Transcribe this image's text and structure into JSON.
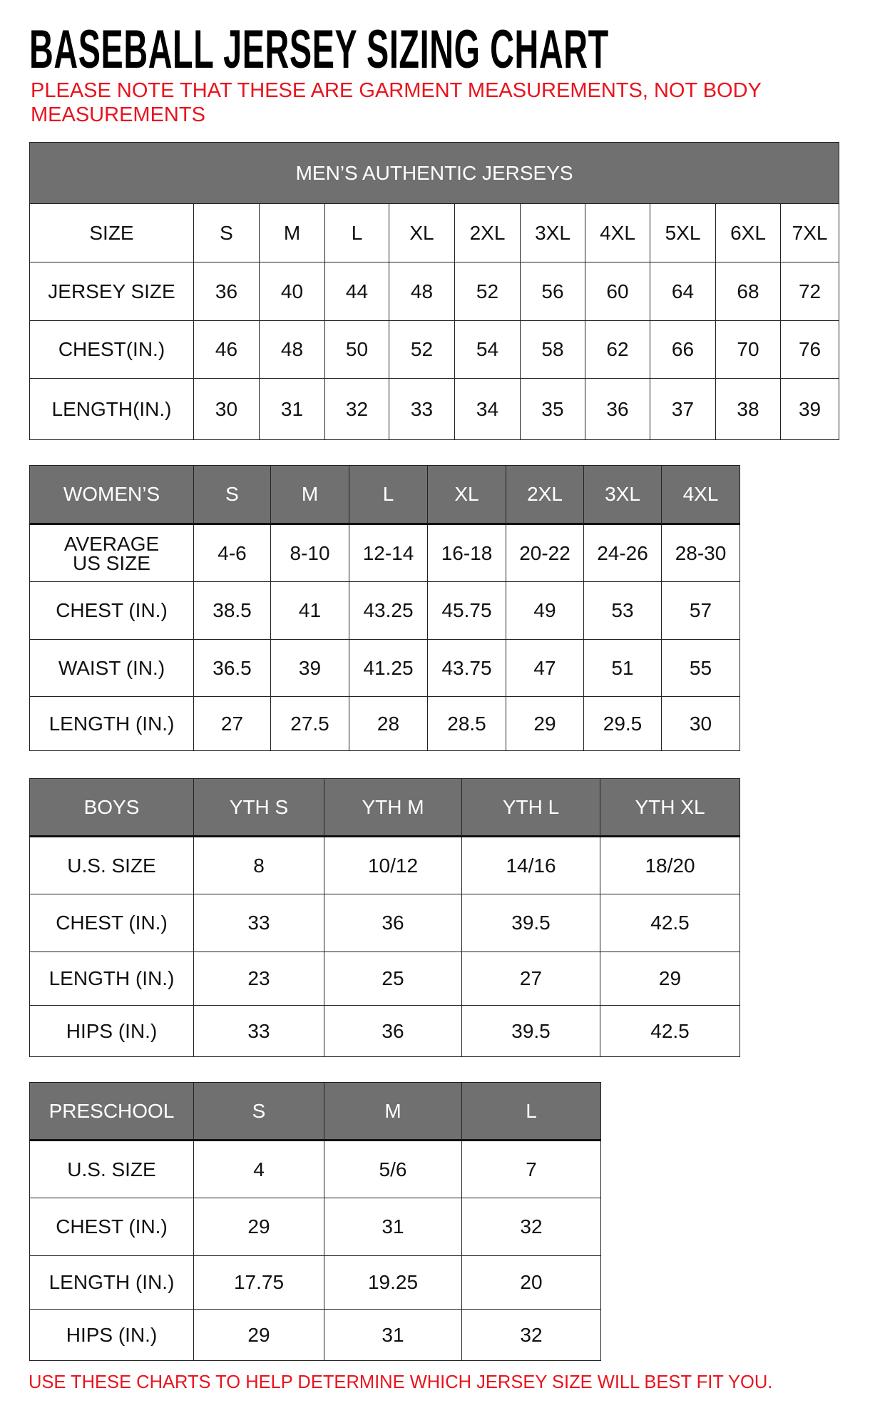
{
  "title": "BASEBALL JERSEY SIZING CHART",
  "note": "PLEASE NOTE THAT THESE ARE GARMENT MEASUREMENTS, NOT BODY MEASUREMENTS",
  "footer": "USE THESE CHARTS TO HELP DETERMINE WHICH JERSEY SIZE WILL BEST FIT YOU.",
  "colors": {
    "header_bg": "#707070",
    "note_red": "#e8141e"
  },
  "tables": [
    {
      "id": "mens",
      "banner": "MEN’S AUTHENTIC JERSEYS",
      "header_dark": false,
      "rows": [
        [
          "SIZE",
          "S",
          "M",
          "L",
          "XL",
          "2XL",
          "3XL",
          "4XL",
          "5XL",
          "6XL",
          "7XL"
        ],
        [
          "JERSEY SIZE",
          "36",
          "40",
          "44",
          "48",
          "52",
          "56",
          "60",
          "64",
          "68",
          "72"
        ],
        [
          "CHEST(IN.)",
          "46",
          "48",
          "50",
          "52",
          "54",
          "58",
          "62",
          "66",
          "70",
          "76"
        ],
        [
          "LENGTH(IN.)",
          "30",
          "31",
          "32",
          "33",
          "34",
          "35",
          "36",
          "37",
          "38",
          "39"
        ]
      ]
    },
    {
      "id": "womens",
      "header_dark": true,
      "rows": [
        [
          "WOMEN’S",
          "S",
          "M",
          "L",
          "XL",
          "2XL",
          "3XL",
          "4XL"
        ],
        [
          "AVERAGE\nUS SIZE",
          "4-6",
          "8-10",
          "12-14",
          "16-18",
          "20-22",
          "24-26",
          "28-30"
        ],
        [
          "CHEST (IN.)",
          "38.5",
          "41",
          "43.25",
          "45.75",
          "49",
          "53",
          "57"
        ],
        [
          "WAIST (IN.)",
          "36.5",
          "39",
          "41.25",
          "43.75",
          "47",
          "51",
          "55"
        ],
        [
          "LENGTH (IN.)",
          "27",
          "27.5",
          "28",
          "28.5",
          "29",
          "29.5",
          "30"
        ]
      ]
    },
    {
      "id": "boys",
      "header_dark": true,
      "rows": [
        [
          "BOYS",
          "YTH S",
          "YTH M",
          "YTH L",
          "YTH XL"
        ],
        [
          "U.S. SIZE",
          "8",
          "10/12",
          "14/16",
          "18/20"
        ],
        [
          "CHEST (IN.)",
          "33",
          "36",
          "39.5",
          "42.5"
        ],
        [
          "LENGTH (IN.)",
          "23",
          "25",
          "27",
          "29"
        ],
        [
          "HIPS (IN.)",
          "33",
          "36",
          "39.5",
          "42.5"
        ]
      ]
    },
    {
      "id": "preschool",
      "header_dark": true,
      "rows": [
        [
          "PRESCHOOL",
          "S",
          "M",
          "L"
        ],
        [
          "U.S. SIZE",
          "4",
          "5/6",
          "7"
        ],
        [
          "CHEST (IN.)",
          "29",
          "31",
          "32"
        ],
        [
          "LENGTH (IN.)",
          "17.75",
          "19.25",
          "20"
        ],
        [
          "HIPS (IN.)",
          "29",
          "31",
          "32"
        ]
      ]
    }
  ]
}
